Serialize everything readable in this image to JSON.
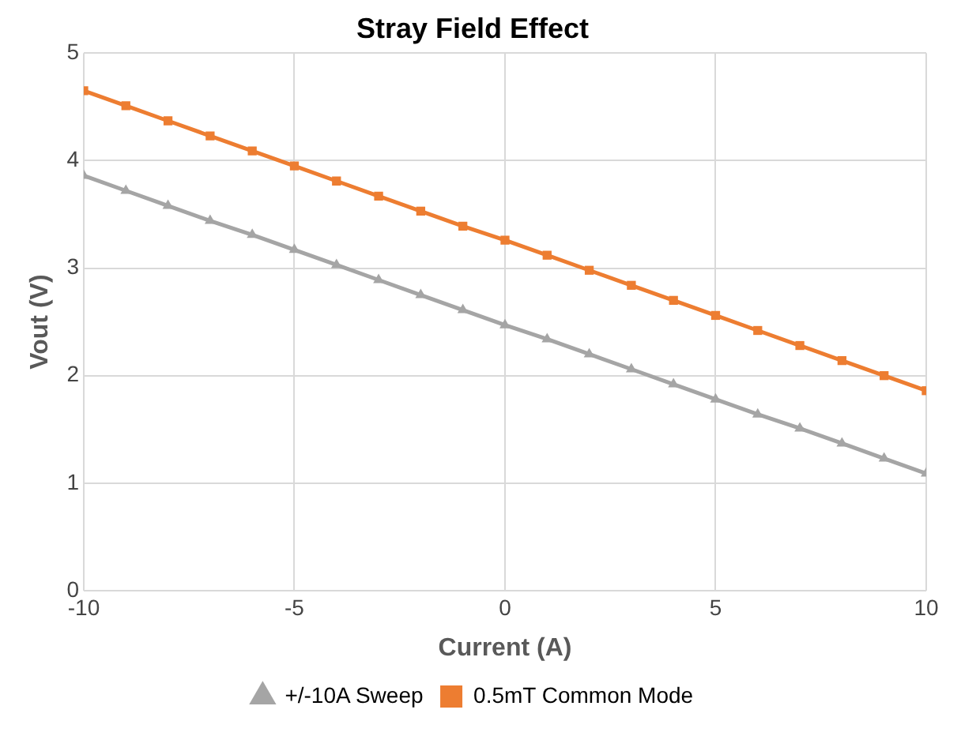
{
  "chart_data": {
    "type": "line",
    "title": "Stray Field Effect",
    "xlabel": "Current (A)",
    "ylabel": "Vout (V)",
    "x": [
      -10,
      -9,
      -8,
      -7,
      -6,
      -5,
      -4,
      -3,
      -2,
      -1,
      0,
      1,
      2,
      3,
      4,
      5,
      6,
      7,
      8,
      9,
      10
    ],
    "series": [
      {
        "name": "+/-10A Sweep",
        "color": "#a5a5a5",
        "marker": "triangle",
        "values": [
          3.86,
          3.72,
          3.58,
          3.44,
          3.31,
          3.17,
          3.03,
          2.89,
          2.75,
          2.61,
          2.47,
          2.34,
          2.2,
          2.06,
          1.92,
          1.78,
          1.64,
          1.51,
          1.37,
          1.23,
          1.09
        ]
      },
      {
        "name": "0.5mT Common Mode",
        "color": "#ed7d31",
        "marker": "square",
        "values": [
          4.65,
          4.51,
          4.37,
          4.23,
          4.09,
          3.95,
          3.81,
          3.67,
          3.53,
          3.39,
          3.26,
          3.12,
          2.98,
          2.84,
          2.7,
          2.56,
          2.42,
          2.28,
          2.14,
          2.0,
          1.86
        ]
      }
    ],
    "xlim": [
      -10,
      10
    ],
    "xticks": [
      -10,
      -5,
      0,
      5,
      10
    ],
    "ylim": [
      0,
      5
    ],
    "yticks": [
      0,
      1,
      2,
      3,
      4,
      5
    ],
    "grid": true,
    "legend": "bottom"
  }
}
